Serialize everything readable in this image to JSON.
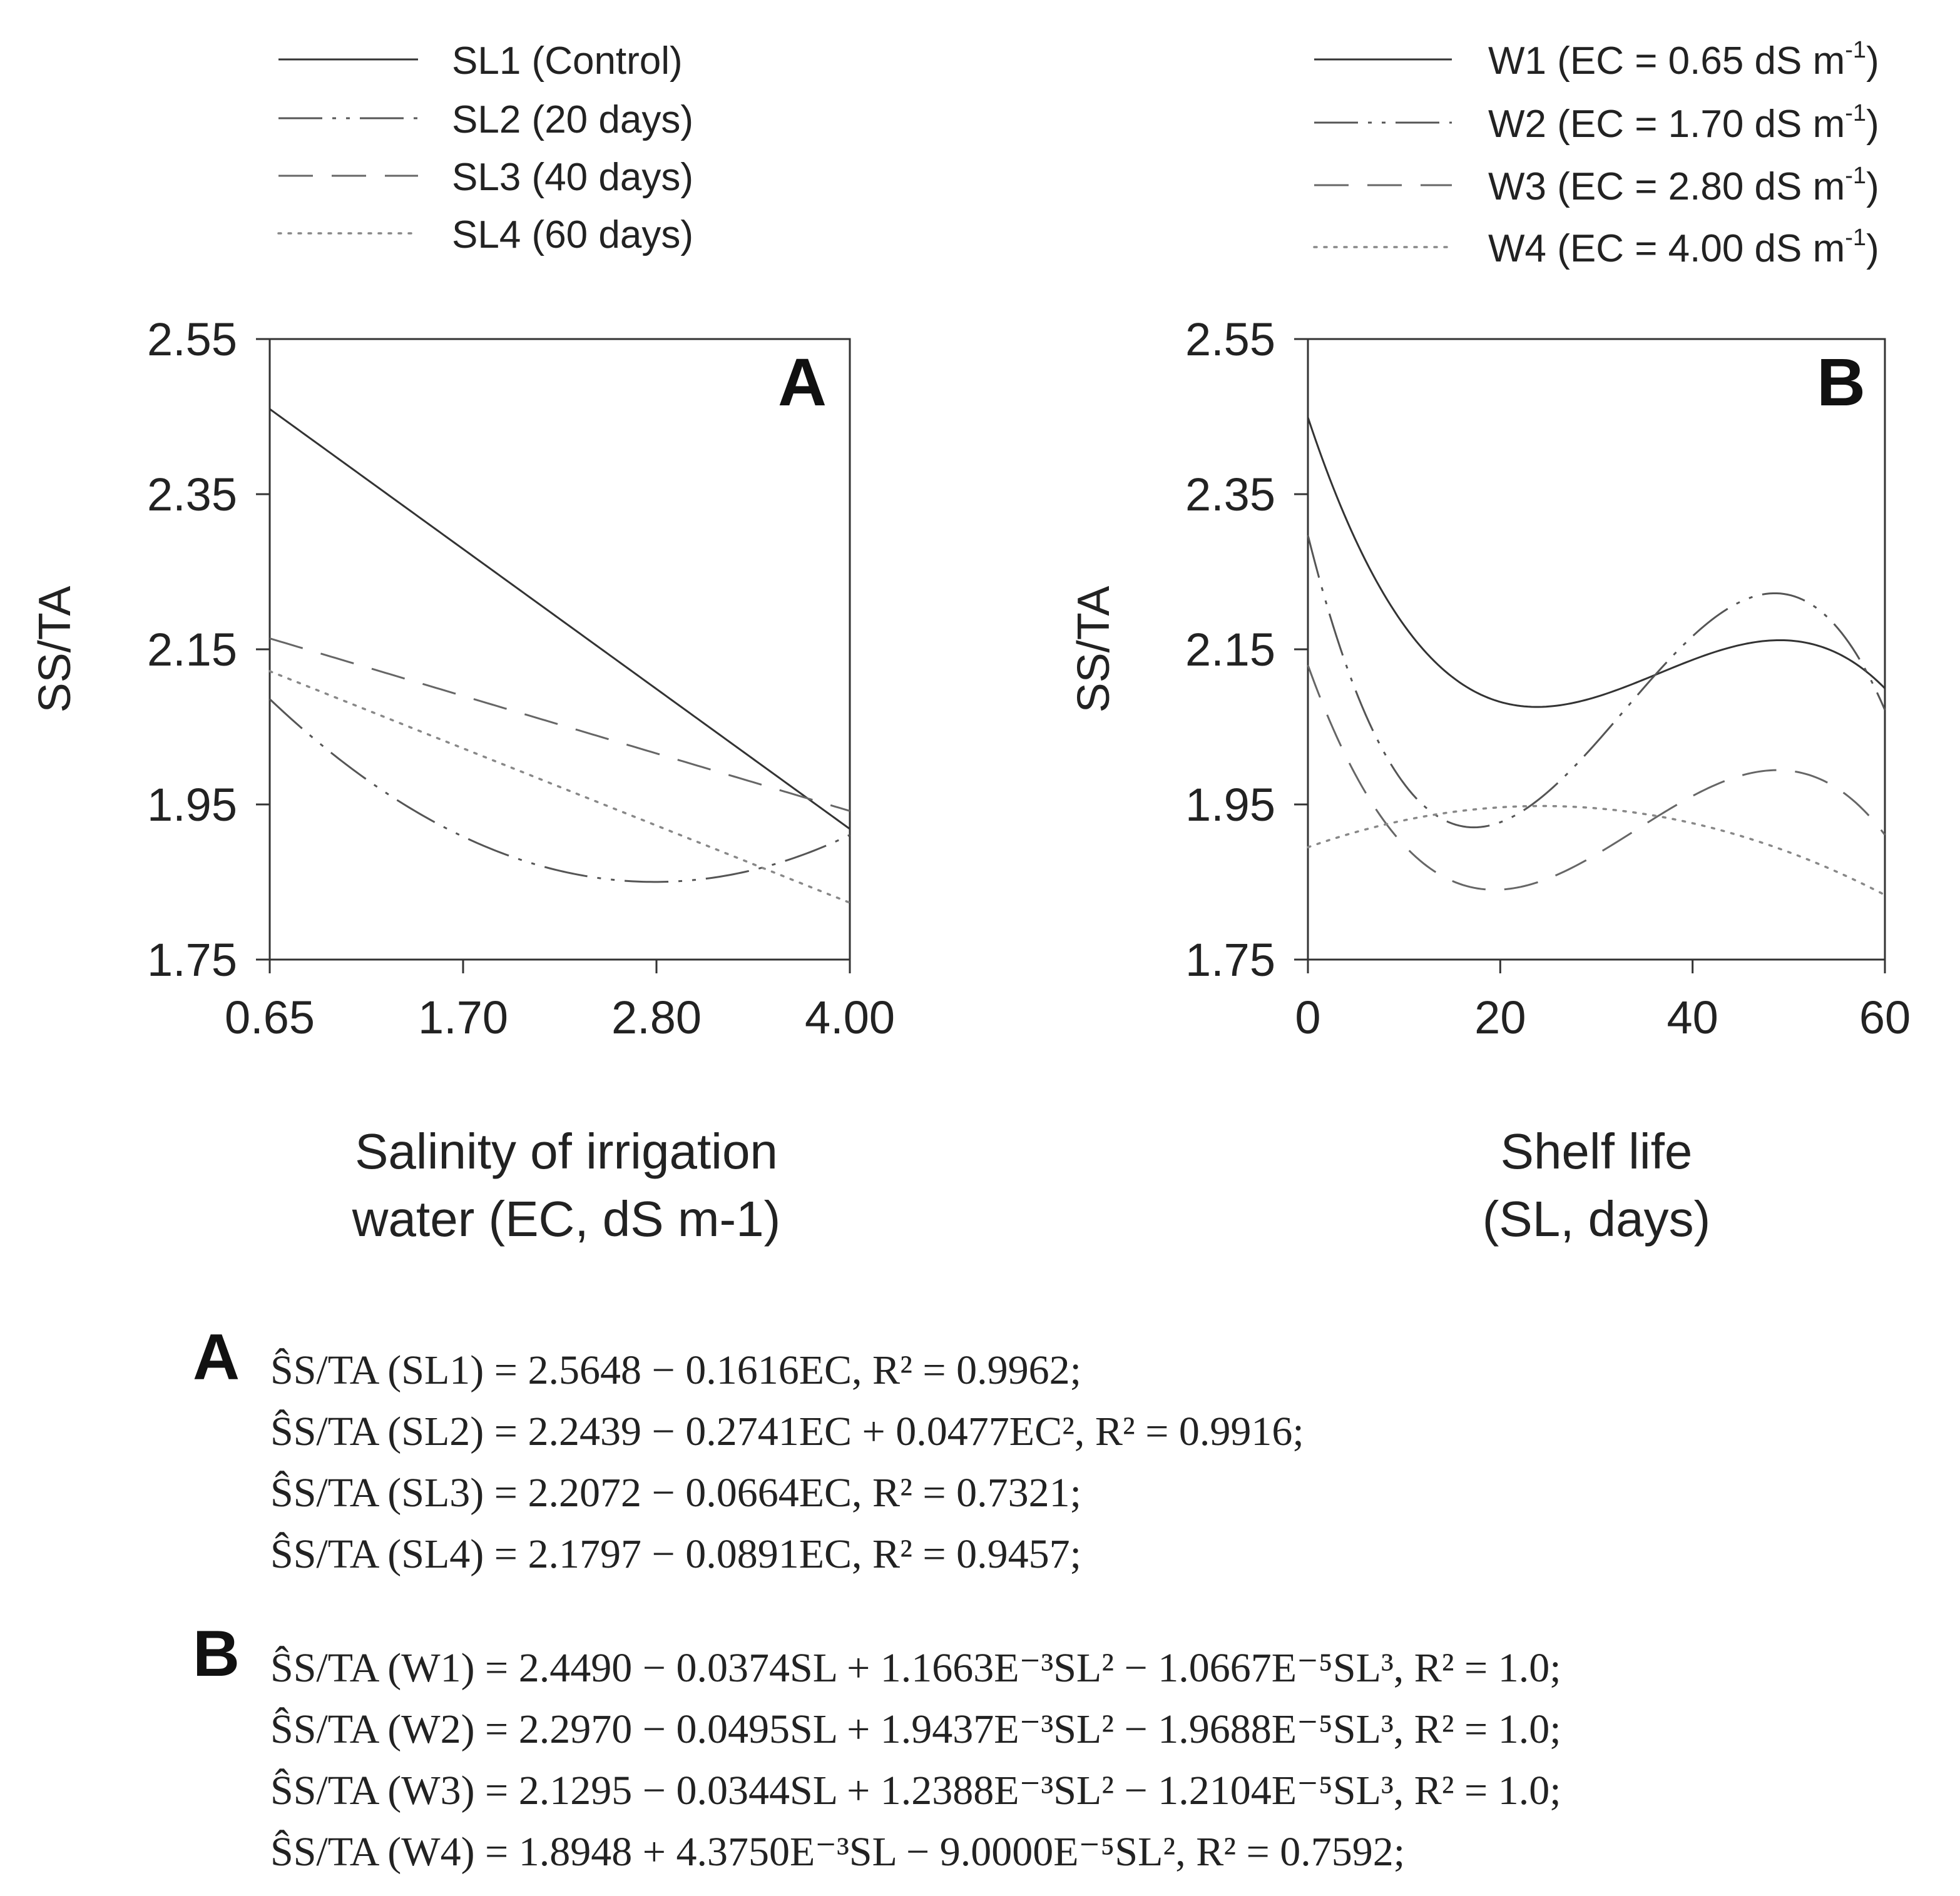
{
  "chart_data": [
    {
      "id": "A",
      "type": "line",
      "panel_label": "A",
      "ylabel": "SS/TA",
      "xlabel_lines": [
        "Salinity of irrigation",
        "water (EC, dS m-1)"
      ],
      "x_categories": [
        "0.65",
        "1.70",
        "2.80",
        "4.00"
      ],
      "x": [
        0.65,
        1.7,
        2.8,
        4.0
      ],
      "xlim": [
        0.65,
        4.0
      ],
      "ylim": [
        1.75,
        2.55
      ],
      "yticks": [
        1.75,
        1.95,
        2.15,
        2.35,
        2.55
      ],
      "ytick_labels": [
        "1.75",
        "1.95",
        "2.15",
        "2.35",
        "2.55"
      ],
      "grid": false,
      "legend_position": "top-left",
      "series": [
        {
          "name": "SL1 (Control)",
          "style": "solid",
          "coef": [
            2.5648,
            -0.1616,
            0,
            0
          ]
        },
        {
          "name": "SL2 (20 days)",
          "style": "dashdotdot",
          "coef": [
            2.2439,
            -0.2741,
            0.0477,
            0
          ]
        },
        {
          "name": "SL3 (40 days)",
          "style": "dashed",
          "coef": [
            2.2072,
            -0.0664,
            0,
            0
          ]
        },
        {
          "name": "SL4 (60 days)",
          "style": "dotted",
          "coef": [
            2.1797,
            -0.0891,
            0,
            0
          ]
        }
      ]
    },
    {
      "id": "B",
      "type": "line",
      "panel_label": "B",
      "ylabel": "SS/TA",
      "xlabel_lines": [
        "Shelf life",
        "(SL, days)"
      ],
      "x_categories": [
        "0",
        "20",
        "40",
        "60"
      ],
      "x": [
        0,
        20,
        40,
        60
      ],
      "xlim": [
        0,
        60
      ],
      "ylim": [
        1.75,
        2.55
      ],
      "yticks": [
        1.75,
        1.95,
        2.15,
        2.35,
        2.55
      ],
      "ytick_labels": [
        "1.75",
        "1.95",
        "2.15",
        "2.35",
        "2.55"
      ],
      "grid": false,
      "legend_position": "top-right",
      "series": [
        {
          "name": "W1 (EC = 0.65 dS m",
          "unit_sup": "-1",
          "close": ")",
          "style": "solid",
          "coef": [
            2.449,
            -0.0374,
            0.0011663,
            -1.0667e-05
          ]
        },
        {
          "name": "W2 (EC = 1.70 dS m",
          "unit_sup": "-1",
          "close": ")",
          "style": "dashdotdot",
          "coef": [
            2.297,
            -0.0495,
            0.0019437,
            -1.9688e-05
          ]
        },
        {
          "name": "W3 (EC = 2.80 dS m",
          "unit_sup": "-1",
          "close": ")",
          "style": "dashed",
          "coef": [
            2.1295,
            -0.0344,
            0.0012388,
            -1.2104e-05
          ]
        },
        {
          "name": "W4 (EC = 4.00 dS m",
          "unit_sup": "-1",
          "close": ")",
          "style": "dotted",
          "coef": [
            1.8948,
            0.004375,
            -9e-05,
            0
          ]
        }
      ]
    }
  ],
  "equations": {
    "A": {
      "letter": "A",
      "lines": [
        "ŜS/TA (SL1) = 2.5648 − 0.1616EC, R² = 0.9962;",
        "ŜS/TA (SL2) = 2.2439 − 0.2741EC + 0.0477EC², R² = 0.9916;",
        "ŜS/TA (SL3) = 2.2072 − 0.0664EC, R² = 0.7321;",
        "ŜS/TA (SL4) = 2.1797 − 0.0891EC, R² = 0.9457;"
      ]
    },
    "B": {
      "letter": "B",
      "lines": [
        "ŜS/TA (W1) = 2.4490 − 0.0374SL + 1.1663E⁻³SL² − 1.0667E⁻⁵SL³, R² = 1.0;",
        "ŜS/TA (W2) = 2.2970 − 0.0495SL + 1.9437E⁻³SL² − 1.9688E⁻⁵SL³, R² = 1.0;",
        "ŜS/TA (W3) = 2.1295 − 0.0344SL + 1.2388E⁻³SL² − 1.2104E⁻⁵SL³, R² = 1.0;",
        "ŜS/TA (W4) = 1.8948 + 4.3750E⁻³SL − 9.0000E⁻⁵SL², R² = 0.7592;"
      ]
    }
  }
}
